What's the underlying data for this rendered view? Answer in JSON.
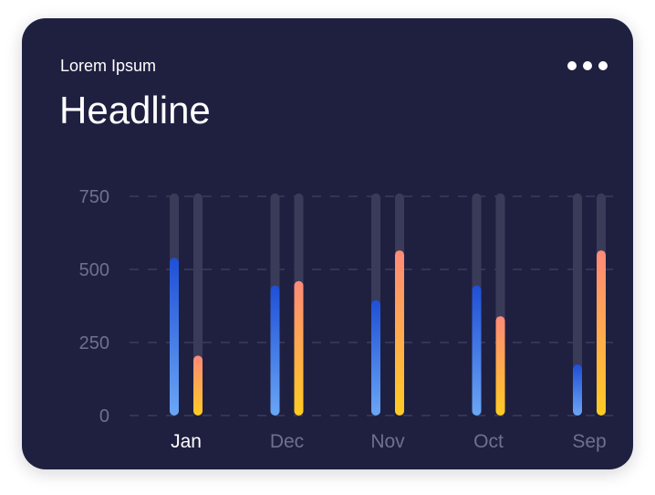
{
  "card": {
    "subtitle": "Lorem Ipsum",
    "headline": "Headline",
    "menu_icon": "more-dots-icon"
  },
  "colors": {
    "background": "#1f2040",
    "track": "#3a3b58",
    "series_a_top": "#1f4fd6",
    "series_a_bottom": "#6aa6f5",
    "series_b_top": "#ff8a78",
    "series_b_bottom": "#ffcb22",
    "grid": "#3a3c5c",
    "muted_text": "#6e7090",
    "active_text": "#ffffff"
  },
  "chart_data": {
    "type": "bar",
    "categories": [
      "Jan",
      "Dec",
      "Nov",
      "Oct",
      "Sep"
    ],
    "active_category": "Jan",
    "series": [
      {
        "values": [
          540,
          445,
          395,
          445,
          175
        ]
      },
      {
        "values": [
          205,
          460,
          565,
          340,
          565
        ]
      }
    ],
    "track_max": 760,
    "yticks": [
      0,
      250,
      500,
      750
    ],
    "ylim": [
      0,
      750
    ],
    "grid": true,
    "grid_style": "dashed"
  }
}
